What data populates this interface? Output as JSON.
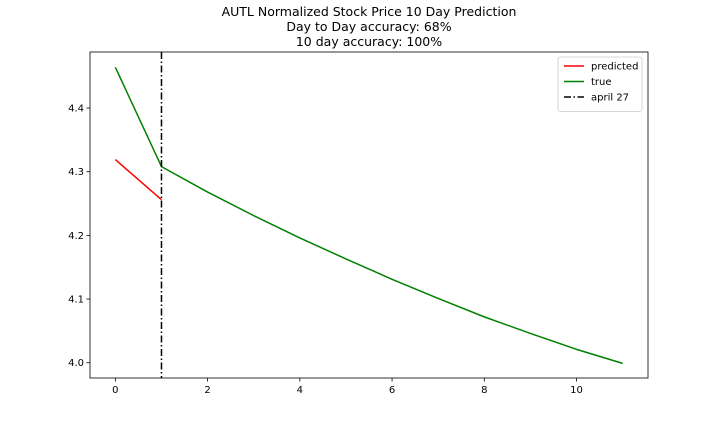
{
  "chart_data": {
    "type": "line",
    "title": "AUTL Normalized Stock Price 10 Day Prediction",
    "subtitle_lines": [
      "Day to Day accuracy: 68%",
      "10 day accuracy: 100%"
    ],
    "xlabel": "",
    "ylabel": "",
    "xlim": [
      -0.55,
      11.55
    ],
    "ylim": [
      3.976,
      4.488
    ],
    "xticks": [
      0,
      2,
      4,
      6,
      8,
      10
    ],
    "yticks": [
      4.0,
      4.1,
      4.2,
      4.3,
      4.4
    ],
    "xtick_labels": [
      "0",
      "2",
      "4",
      "6",
      "8",
      "10"
    ],
    "ytick_labels": [
      "4.0",
      "4.1",
      "4.2",
      "4.3",
      "4.4"
    ],
    "grid": false,
    "legend_position": "top-right",
    "series": [
      {
        "name": "predicted",
        "color": "#ff0000",
        "style": "solid",
        "x": [
          0,
          1
        ],
        "y": [
          4.319,
          4.256
        ]
      },
      {
        "name": "true",
        "color": "#008000",
        "style": "solid",
        "x": [
          0,
          1,
          2,
          3,
          4,
          5,
          6,
          7,
          8,
          9,
          10,
          11
        ],
        "y": [
          4.464,
          4.308,
          4.268,
          4.231,
          4.196,
          4.163,
          4.131,
          4.101,
          4.072,
          4.046,
          4.021,
          3.999
        ]
      }
    ],
    "vlines": [
      {
        "name": "april 27",
        "x": 1,
        "color": "#000000",
        "style": "dashdot"
      }
    ]
  }
}
